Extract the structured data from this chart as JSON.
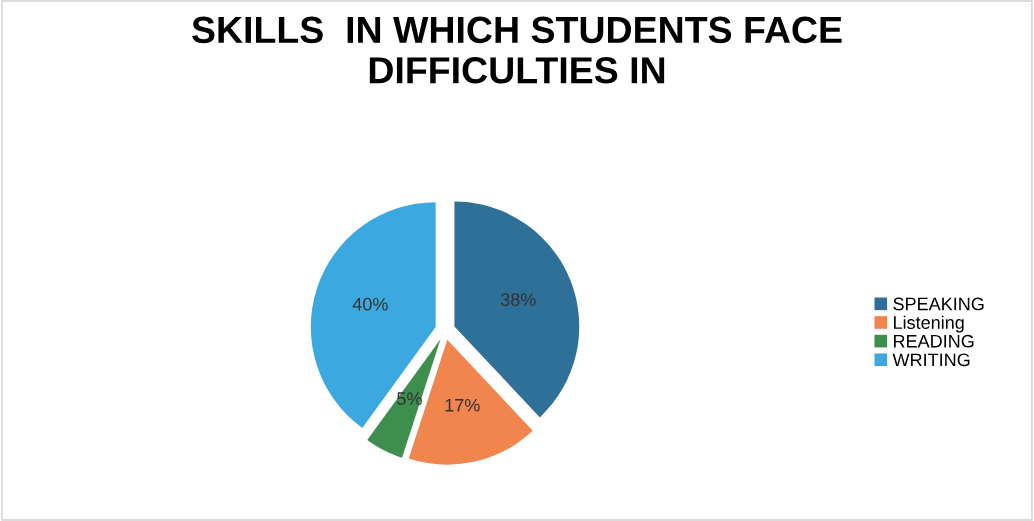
{
  "chart_data": {
    "type": "pie",
    "title": "SKILLS  IN WHICH STUDENTS FACE\nDIFFICULTIES IN",
    "categories": [
      "SPEAKING",
      "Listening",
      "READING",
      "WRITING"
    ],
    "values": [
      38,
      17,
      5,
      40
    ],
    "value_labels": [
      "38%",
      "17%",
      "5%",
      "40%"
    ],
    "colors": [
      "#2f7099",
      "#f0854e",
      "#3e8f4e",
      "#3ba8df"
    ],
    "legend": "right"
  }
}
